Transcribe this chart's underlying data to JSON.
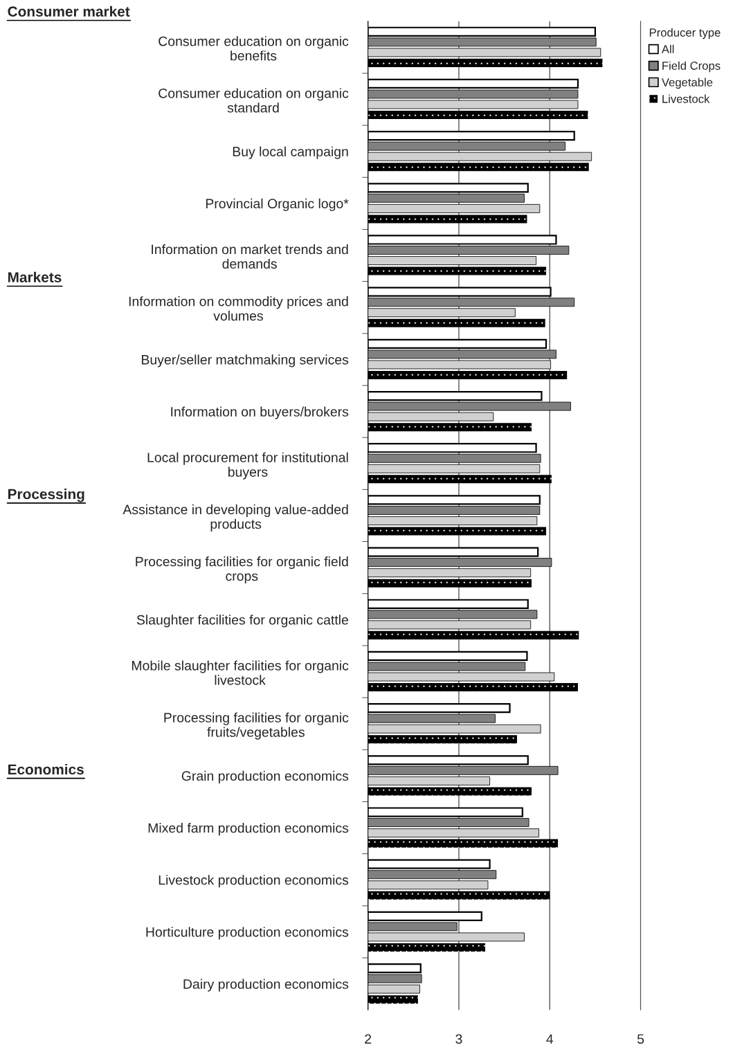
{
  "chart_data": {
    "type": "bar",
    "orientation": "horizontal",
    "legend_title": "Producer type",
    "legend": "top right",
    "grid": "x",
    "categories": [
      "Consumer education on organic\nbenefits",
      "Consumer education on organic\nstandard",
      "Buy local campaign",
      "Provincial Organic logo*",
      "Information on market trends and\ndemands",
      "Information on commodity prices and\nvolumes",
      "Buyer/seller matchmaking services",
      "Information on buyers/brokers",
      "Local procurement for institutional\nbuyers",
      "Assistance in developing value-added\nproducts",
      "Processing facilities for organic field\ncrops",
      "Slaughter facilities for organic cattle",
      "Mobile slaughter facilities for organic\nlivestock",
      "Processing facilities for organic\nfruits/vegetables",
      "Grain production economics",
      "Mixed farm production economics",
      "Livestock production economics",
      "Horticulture production economics",
      "Dairy production economics"
    ],
    "series": [
      {
        "name": "All",
        "color": "#ffffff",
        "values": [
          4.5,
          4.31,
          4.27,
          3.76,
          4.07,
          4.01,
          3.96,
          3.91,
          3.85,
          3.89,
          3.87,
          3.76,
          3.75,
          3.56,
          3.76,
          3.7,
          3.34,
          3.25,
          2.58
        ]
      },
      {
        "name": "Field Crops",
        "color": "#808080",
        "values": [
          4.51,
          4.31,
          4.17,
          3.72,
          4.21,
          4.27,
          4.07,
          4.23,
          3.9,
          3.89,
          4.02,
          3.86,
          3.73,
          3.4,
          4.09,
          3.77,
          3.41,
          2.98,
          2.59
        ]
      },
      {
        "name": "Vegetable",
        "color": "#d0d0d0",
        "values": [
          4.56,
          4.31,
          4.46,
          3.89,
          3.85,
          3.62,
          4.01,
          3.38,
          3.89,
          3.86,
          3.79,
          3.79,
          4.05,
          3.9,
          3.34,
          3.88,
          3.32,
          3.72,
          2.57
        ]
      },
      {
        "name": "Livestock",
        "color": "#000000",
        "values": [
          4.58,
          4.42,
          4.43,
          3.75,
          3.96,
          3.95,
          4.19,
          3.8,
          4.02,
          3.96,
          3.8,
          4.32,
          4.31,
          3.64,
          3.8,
          4.09,
          4.0,
          3.29,
          2.55
        ]
      }
    ],
    "xlim": [
      2,
      5
    ],
    "xticks": [
      2,
      3,
      4,
      5
    ],
    "annotations": [
      "Consumer market",
      "Markets",
      "Processing",
      "Economics"
    ]
  }
}
